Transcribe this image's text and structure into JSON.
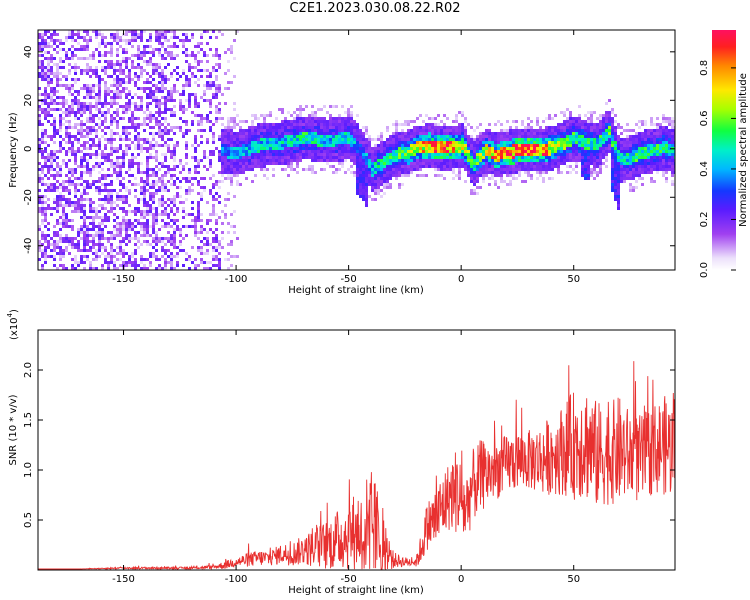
{
  "title": "C2E1.2023.030.08.22.R02",
  "chart_data": [
    {
      "type": "heatmap",
      "xlabel": "Height of straight line (km)",
      "ylabel": "Frequency (Hz)",
      "xlim": [
        -188,
        95
      ],
      "ylim": [
        -50,
        49
      ],
      "x_ticks": [
        -150,
        -100,
        -50,
        0,
        50
      ],
      "x_tick_labels": [
        "-150",
        "-100",
        "-50",
        "0",
        "50"
      ],
      "y_ticks": [
        -40,
        -20,
        0,
        20,
        40
      ],
      "y_tick_labels": [
        "-40",
        "-20",
        "0",
        "20",
        "40"
      ],
      "colorbar": {
        "label": "Normalized spectral amplitude",
        "range": [
          0,
          0.95
        ],
        "ticks": [
          0.0,
          0.2,
          0.4,
          0.6,
          0.8
        ],
        "tick_labels": [
          "0.0",
          "0.2",
          "0.4",
          "0.6",
          "0.8"
        ],
        "colormap": "rainbow"
      },
      "ridge_profile": {
        "x": [
          -110,
          -100,
          -90,
          -80,
          -70,
          -60,
          -50,
          -45,
          -40,
          -35,
          -30,
          -25,
          -20,
          -15,
          -10,
          -5,
          0,
          5,
          10,
          15,
          20,
          25,
          30,
          35,
          40,
          45,
          50,
          55,
          60,
          65,
          70,
          75,
          80,
          85,
          90,
          95
        ],
        "frequency": [
          0,
          -1,
          2,
          3,
          5,
          4,
          5,
          0,
          -8,
          -5,
          -2,
          -1,
          1,
          2,
          1,
          1,
          2,
          -6,
          0,
          -2,
          -1,
          0,
          0,
          0,
          1,
          3,
          5,
          3,
          2,
          8,
          -4,
          -3,
          -1,
          0,
          1,
          -1
        ],
        "peak_amplitude": [
          0.35,
          0.4,
          0.45,
          0.45,
          0.5,
          0.45,
          0.45,
          0.35,
          0.45,
          0.5,
          0.55,
          0.6,
          0.7,
          0.8,
          0.9,
          0.85,
          0.7,
          0.5,
          0.7,
          0.8,
          0.85,
          0.9,
          0.95,
          0.85,
          0.7,
          0.6,
          0.5,
          0.55,
          0.5,
          0.55,
          0.45,
          0.5,
          0.55,
          0.5,
          0.55,
          0.45
        ]
      }
    },
    {
      "type": "line",
      "xlabel": "Height of straight line (km)",
      "ylabel": "SNR (10 * v/v)",
      "y_scale_label": "(x10",
      "y_scale_exponent": "4",
      "xlim": [
        -188,
        95
      ],
      "ylim": [
        0,
        2.4
      ],
      "x_ticks": [
        -150,
        -100,
        -50,
        0,
        50
      ],
      "x_tick_labels": [
        "-150",
        "-100",
        "-50",
        "0",
        "50"
      ],
      "y_ticks": [
        0.5,
        1.0,
        1.5,
        2.0
      ],
      "y_tick_labels": [
        "0.5",
        "1.0",
        "1.5",
        "2.0"
      ],
      "series": [
        {
          "color": "#e8302f",
          "x": [
            -188,
            -170,
            -150,
            -140,
            -130,
            -120,
            -110,
            -105,
            -100,
            -95,
            -90,
            -85,
            -80,
            -75,
            -70,
            -65,
            -60,
            -55,
            -50,
            -45,
            -40,
            -38,
            -35,
            -30,
            -25,
            -20,
            -18,
            -15,
            -12,
            -10,
            -8,
            -5,
            -2,
            0,
            2,
            5,
            8,
            10,
            15,
            20,
            25,
            30,
            35,
            40,
            45,
            50,
            55,
            60,
            65,
            70,
            75,
            80,
            85,
            90,
            95
          ],
          "y": [
            0.01,
            0.01,
            0.02,
            0.02,
            0.02,
            0.02,
            0.03,
            0.05,
            0.08,
            0.1,
            0.12,
            0.12,
            0.16,
            0.16,
            0.2,
            0.22,
            0.25,
            0.3,
            0.35,
            0.4,
            0.45,
            0.4,
            0.25,
            0.1,
            0.08,
            0.08,
            0.2,
            0.45,
            0.5,
            0.55,
            0.65,
            0.75,
            0.8,
            0.7,
            0.6,
            0.85,
            0.9,
            0.95,
            1.0,
            1.05,
            1.1,
            1.1,
            1.1,
            1.15,
            1.2,
            1.25,
            1.3,
            1.15,
            1.15,
            1.2,
            1.15,
            1.1,
            1.2,
            1.25,
            1.2
          ],
          "spread": [
            0.0,
            0.0,
            0.01,
            0.01,
            0.01,
            0.01,
            0.02,
            0.04,
            0.05,
            0.07,
            0.08,
            0.08,
            0.1,
            0.12,
            0.15,
            0.2,
            0.25,
            0.3,
            0.35,
            0.45,
            0.55,
            0.5,
            0.35,
            0.08,
            0.05,
            0.05,
            0.15,
            0.25,
            0.3,
            0.35,
            0.35,
            0.35,
            0.45,
            0.4,
            0.4,
            0.35,
            0.4,
            0.35,
            0.3,
            0.3,
            0.3,
            0.3,
            0.35,
            0.4,
            0.45,
            0.55,
            0.6,
            0.55,
            0.5,
            0.55,
            0.45,
            0.45,
            0.45,
            0.5,
            0.5
          ]
        }
      ]
    }
  ]
}
